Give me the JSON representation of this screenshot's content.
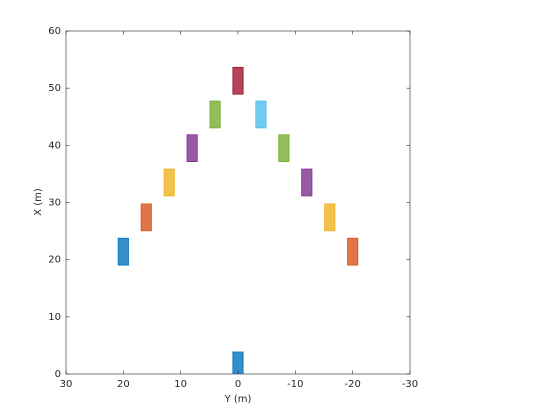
{
  "chart_data": {
    "type": "rect",
    "x_label": "Y (m)",
    "y_label": "X (m)",
    "xlim": [
      30,
      -30
    ],
    "xticks": [
      30,
      20,
      10,
      0,
      -10,
      -20,
      -30
    ],
    "ylim": [
      0,
      60
    ],
    "yticks": [
      0,
      10,
      20,
      30,
      40,
      50,
      60
    ],
    "grid": false,
    "box": true,
    "length": 4.7,
    "width": 1.8,
    "x": [
      0,
      20,
      16,
      12,
      8,
      4,
      0,
      -4,
      -8,
      -12,
      -16,
      -20
    ],
    "values": [
      1.5,
      21.4,
      27.4,
      33.5,
      39.5,
      45.4,
      51.3,
      45.4,
      39.5,
      33.5,
      27.4,
      21.4
    ],
    "colors": [
      "#0072bd",
      "#0072bd",
      "#d95319",
      "#edb120",
      "#7e2f8e",
      "#77ac30",
      "#a2142f",
      "#4dbeee",
      "#77ac30",
      "#7e2f8e",
      "#edb120",
      "#d95319"
    ]
  }
}
